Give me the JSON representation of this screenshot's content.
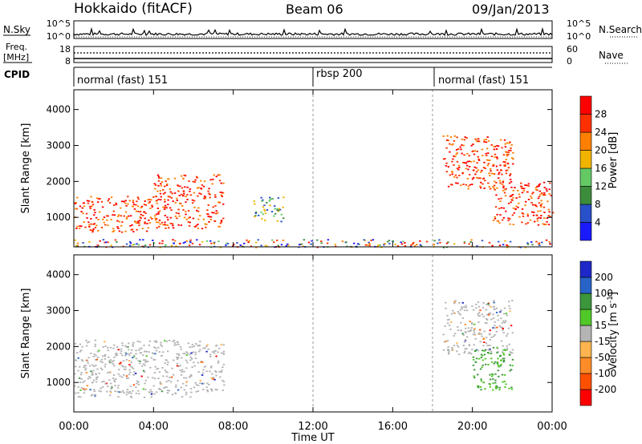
{
  "header": {
    "station": "Hokkaido (fitACF)",
    "beam": "Beam 06",
    "date": "09/Jan/2013"
  },
  "top_panels": {
    "nsky_label": "N.Sky",
    "nsearch_label": "N.Search",
    "nsky_ticks": [
      "10^5",
      "10^0"
    ],
    "freq_label_1": "Freq.",
    "freq_label_2": "[MHz]",
    "freq_ticks": [
      "18",
      "8"
    ],
    "nave_label": "Nave",
    "nave_ticks": [
      "60",
      "0"
    ],
    "cpid_label": "CPID",
    "modes": [
      {
        "label": "normal (fast) 151",
        "start_hour": 0
      },
      {
        "label": "rbsp 200",
        "start_hour": 12
      },
      {
        "label": "normal (fast) 151",
        "start_hour": 18
      }
    ]
  },
  "colors": {
    "power": [
      "#1a1aff",
      "#2850c8",
      "#3c8c3c",
      "#64c864",
      "#f0b400",
      "#ff8000",
      "#ff3000",
      "#ff0000"
    ],
    "velocity": [
      "#ff0000",
      "#ff5000",
      "#ff8c28",
      "#ffb450",
      "#b4b4b4",
      "#50c828",
      "#3c963c",
      "#2864c8",
      "#1e28c8"
    ]
  },
  "chart_data": [
    {
      "type": "heatmap",
      "name": "power-panel",
      "ylabel": "Slant Range [km]",
      "ylim": [
        180,
        4550
      ],
      "xlim_hours": [
        0,
        24
      ],
      "yticks": [
        1000,
        2000,
        3000,
        4000
      ],
      "colorbar": {
        "label": "Power [dB]",
        "ticks": [
          "4",
          "8",
          "12",
          "16",
          "20",
          "24",
          "28"
        ]
      },
      "scatter_regions": [
        {
          "hours": [
            0,
            4
          ],
          "range_km": [
            600,
            1600
          ],
          "level": "high"
        },
        {
          "hours": [
            4,
            7.5
          ],
          "range_km": [
            700,
            2200
          ],
          "level": "high"
        },
        {
          "hours": [
            9,
            10.5
          ],
          "range_km": [
            900,
            1600
          ],
          "level": "mid"
        },
        {
          "hours": [
            18.5,
            22
          ],
          "range_km": [
            1800,
            3300
          ],
          "level": "high"
        },
        {
          "hours": [
            21,
            24
          ],
          "range_km": [
            800,
            2000
          ],
          "level": "high"
        },
        {
          "hours": [
            0,
            24
          ],
          "range_km": [
            180,
            400
          ],
          "level": "mixed"
        }
      ]
    },
    {
      "type": "heatmap",
      "name": "velocity-panel",
      "ylabel": "Slant Range [km]",
      "xlabel": "Time UT",
      "ylim": [
        180,
        4550
      ],
      "xlim_hours": [
        0,
        24
      ],
      "yticks": [
        1000,
        2000,
        3000,
        4000
      ],
      "xticks": [
        "00:00",
        "04:00",
        "08:00",
        "12:00",
        "16:00",
        "20:00",
        "00:00"
      ],
      "colorbar": {
        "label": "Velocity [m s",
        "label_sup": "-1",
        "label_end": "]",
        "ticks": [
          "-200",
          "-100",
          "-50",
          "-15",
          "15",
          "50",
          "100",
          "200"
        ]
      },
      "scatter_regions": [
        {
          "hours": [
            0,
            7.5
          ],
          "range_km": [
            600,
            2200
          ],
          "level": "near-zero"
        },
        {
          "hours": [
            18.5,
            22
          ],
          "range_km": [
            1800,
            3300
          ],
          "level": "near-zero"
        },
        {
          "hours": [
            20,
            22
          ],
          "range_km": [
            800,
            2000
          ],
          "level": "positive"
        }
      ]
    }
  ]
}
